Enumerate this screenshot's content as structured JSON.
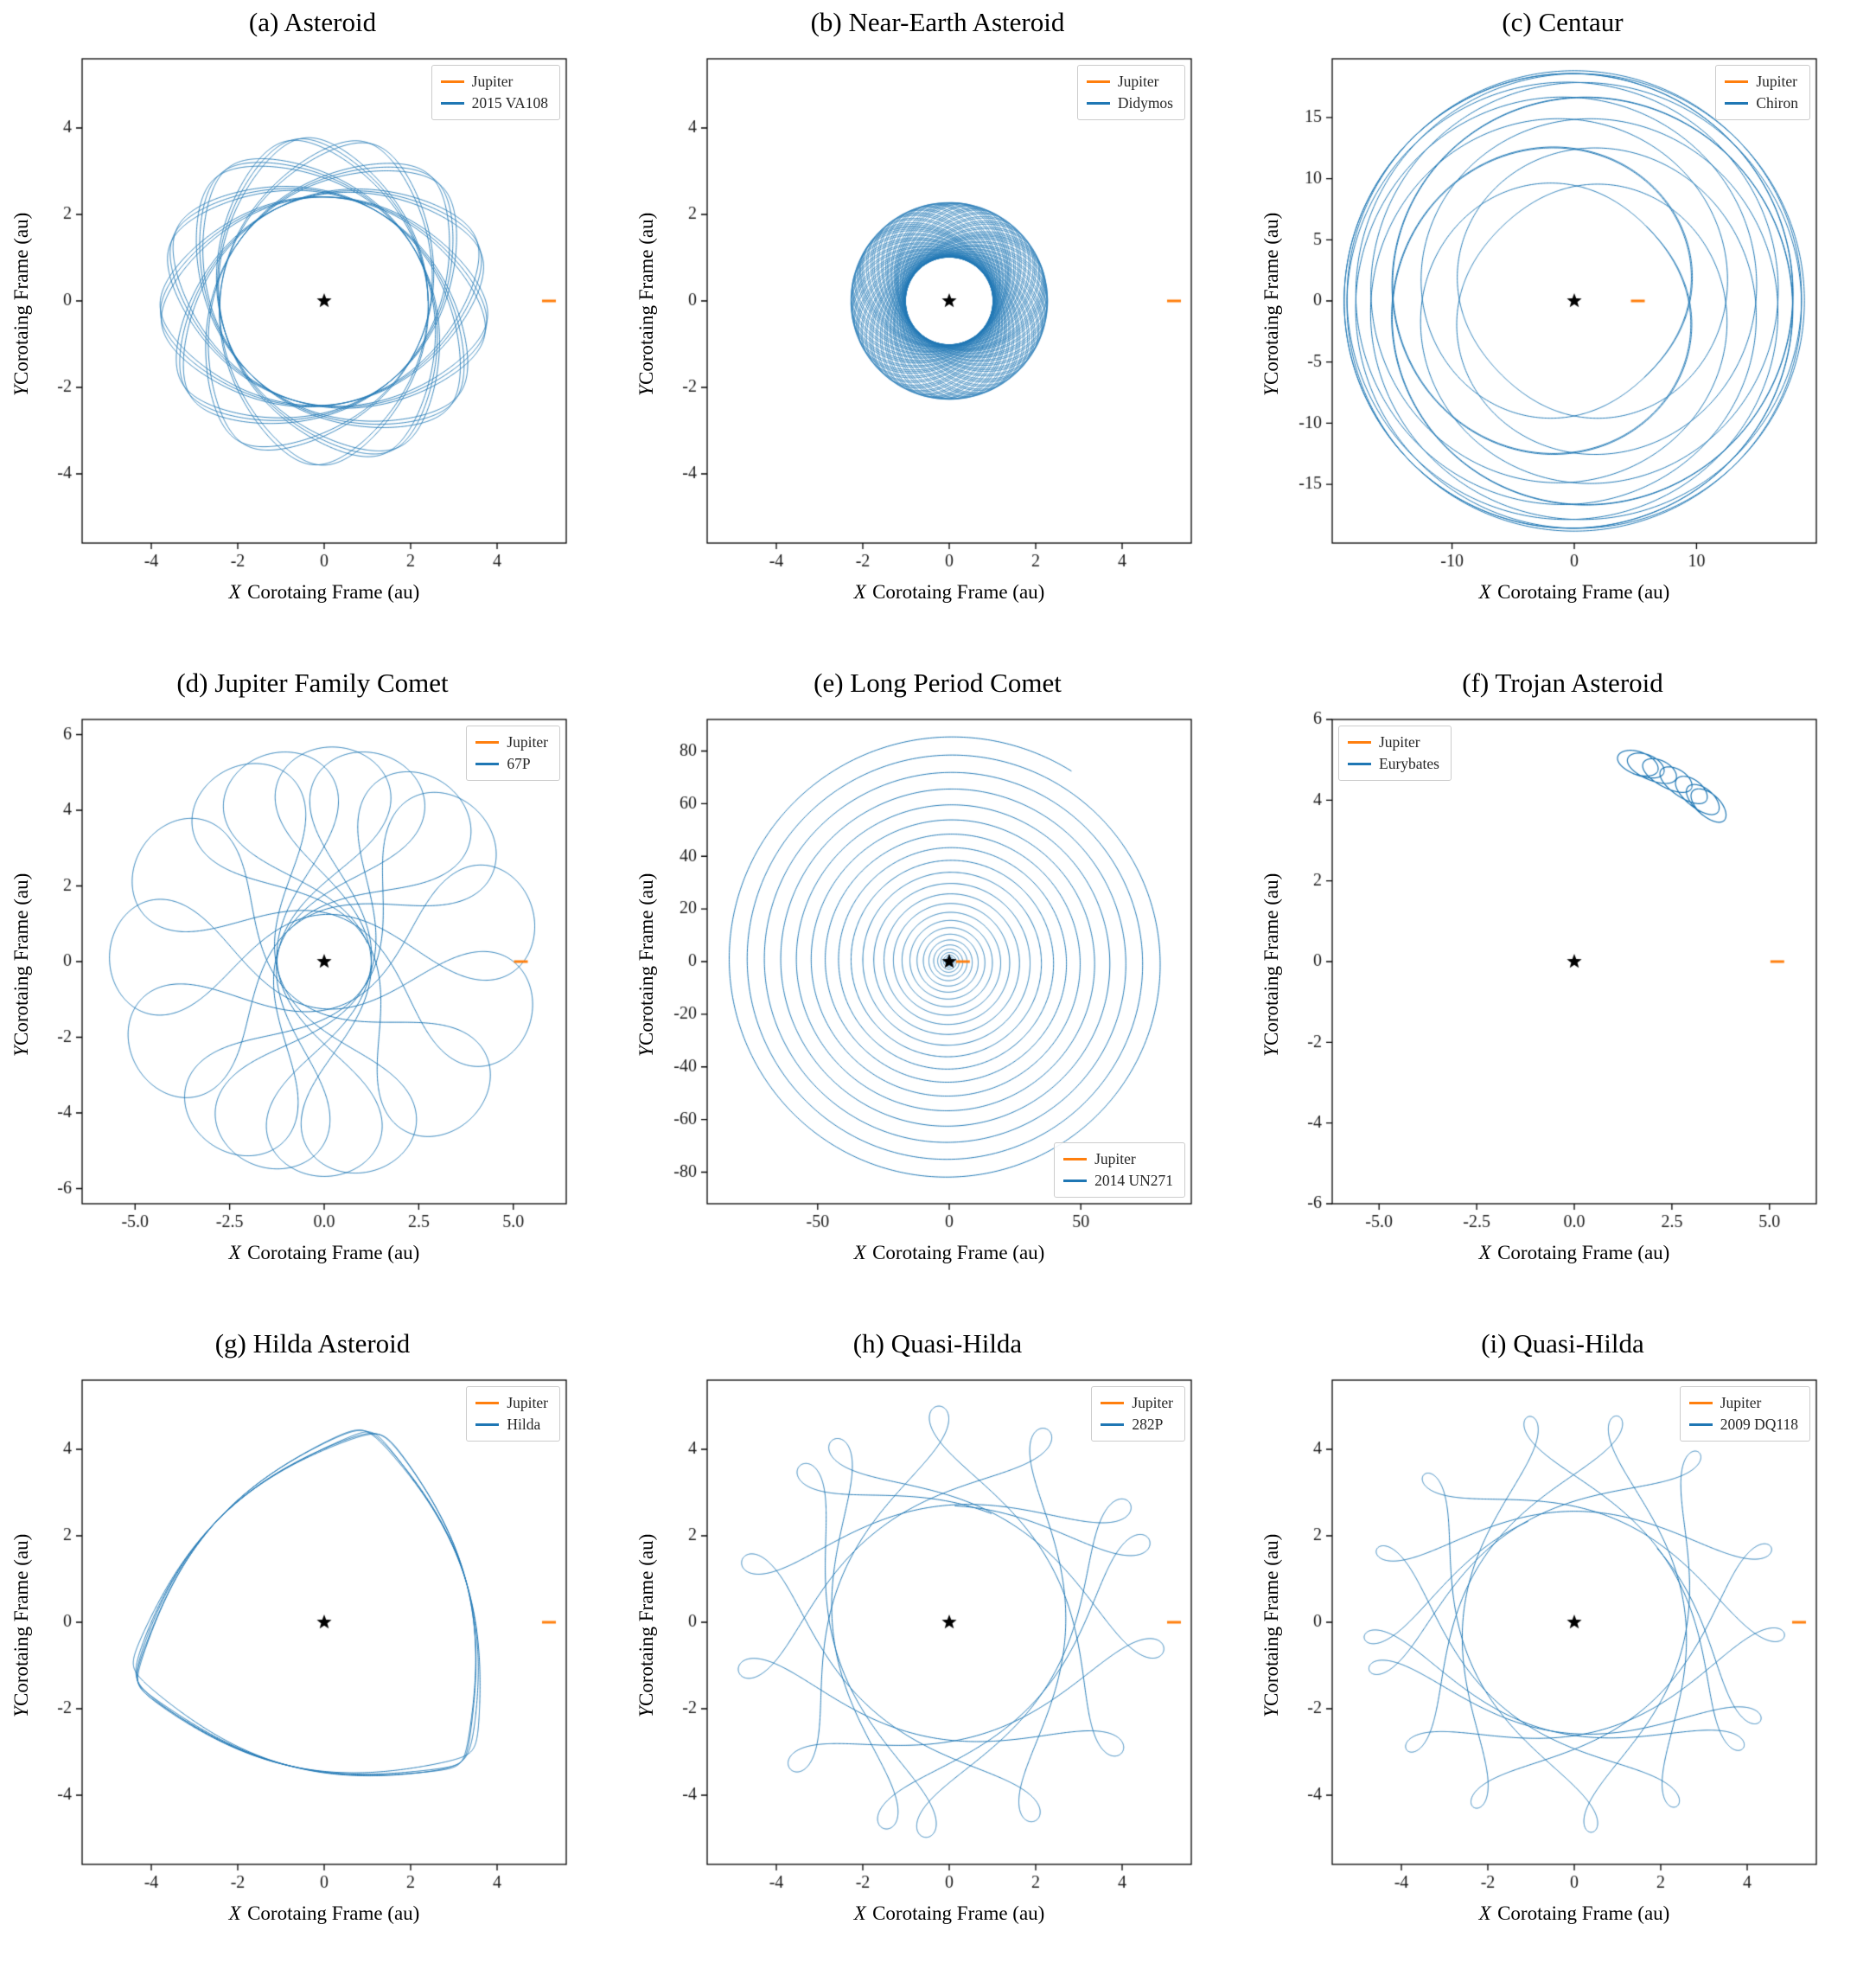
{
  "figure": {
    "rows": 3,
    "columns": 3,
    "background": "#ffffff"
  },
  "palette": {
    "object_line": "#1f77b4",
    "jupiter": "#ff7f0e",
    "star": "#000000",
    "spine": "#000000",
    "tick_text": "#1a1a1a"
  },
  "chart_data": [
    {
      "id": "a",
      "type": "line",
      "title": "(a) Asteroid",
      "xlabel_var": "X",
      "xlabel_rest": "Corotaing Frame (au)",
      "ylabel_var": "Y",
      "ylabel_rest": "Corotaing Frame (au)",
      "xlim": [
        -5.6,
        5.6
      ],
      "ylim": [
        -5.6,
        5.6
      ],
      "xticks": {
        "values": [
          -4,
          -2,
          0,
          2,
          4
        ],
        "labels": [
          "-4",
          "-2",
          "0",
          "2",
          "4"
        ]
      },
      "yticks": {
        "values": [
          -4,
          -2,
          0,
          2,
          4
        ],
        "labels": [
          "-4",
          "-2",
          "0",
          "2",
          "4"
        ]
      },
      "legend": {
        "pos": "top-right",
        "entries": [
          {
            "label": "Jupiter",
            "color": "#ff7f0e"
          },
          {
            "label": "2015 VA108",
            "color": "#1f77b4"
          }
        ]
      },
      "markers": {
        "sun": [
          0,
          0
        ],
        "jupiter": [
          5.2,
          0
        ]
      },
      "orbit": {
        "gen": "kepler",
        "a": 3.1,
        "e": 0.225,
        "k": 2.17,
        "orbits": 36,
        "steps": 300,
        "varpi": 0,
        "color": "#1f77b4",
        "lw": 0.9
      }
    },
    {
      "id": "b",
      "type": "line",
      "title": "(b) Near-Earth Asteroid",
      "xlabel_var": "X",
      "xlabel_rest": "Corotaing Frame (au)",
      "ylabel_var": "Y",
      "ylabel_rest": "Corotaing Frame (au)",
      "xlim": [
        -5.6,
        5.6
      ],
      "ylim": [
        -5.6,
        5.6
      ],
      "xticks": {
        "values": [
          -4,
          -2,
          0,
          2,
          4
        ],
        "labels": [
          "-4",
          "-2",
          "0",
          "2",
          "4"
        ]
      },
      "yticks": {
        "values": [
          -4,
          -2,
          0,
          2,
          4
        ],
        "labels": [
          "-4",
          "-2",
          "0",
          "2",
          "4"
        ]
      },
      "legend": {
        "pos": "top-right",
        "entries": [
          {
            "label": "Jupiter",
            "color": "#ff7f0e"
          },
          {
            "label": "Didymos",
            "color": "#1f77b4"
          }
        ]
      },
      "markers": {
        "sun": [
          0,
          0
        ],
        "jupiter": [
          5.2,
          0
        ]
      },
      "orbit": {
        "gen": "kepler",
        "a": 1.644,
        "e": 0.384,
        "k": 5.63,
        "orbits": 110,
        "steps": 220,
        "varpi": 0,
        "color": "#1f77b4",
        "lw": 0.7
      }
    },
    {
      "id": "c",
      "type": "line",
      "title": "(c) Centaur",
      "xlabel_var": "X",
      "xlabel_rest": "Corotaing Frame (au)",
      "ylabel_var": "Y",
      "ylabel_rest": "Corotaing Frame (au)",
      "xlim": [
        -19.8,
        19.8
      ],
      "ylim": [
        -19.8,
        19.8
      ],
      "xticks": {
        "values": [
          -10,
          0,
          10
        ],
        "labels": [
          "-10",
          "0",
          "10"
        ]
      },
      "yticks": {
        "values": [
          -15,
          -10,
          -5,
          0,
          5,
          10,
          15
        ],
        "labels": [
          "-15",
          "-10",
          "-5",
          "0",
          "5",
          "10",
          "15"
        ]
      },
      "legend": {
        "pos": "top-right",
        "entries": [
          {
            "label": "Jupiter",
            "color": "#ff7f0e"
          },
          {
            "label": "Chiron",
            "color": "#1f77b4"
          }
        ]
      },
      "markers": {
        "sun": [
          0,
          0
        ],
        "jupiter": [
          5.2,
          0
        ]
      },
      "orbit": {
        "gen": "kepler",
        "a": 13.65,
        "e": 0.379,
        "k": 0.2352,
        "orbits": 5,
        "steps": 1600,
        "varpi": 0.8,
        "color": "#1f77b4",
        "lw": 1.0
      }
    },
    {
      "id": "d",
      "type": "line",
      "title": "(d) Jupiter Family Comet",
      "xlabel_var": "X",
      "xlabel_rest": "Corotaing Frame (au)",
      "ylabel_var": "Y",
      "ylabel_rest": "Corotaing Frame (au)",
      "xlim": [
        -6.4,
        6.4
      ],
      "ylim": [
        -6.4,
        6.4
      ],
      "xticks": {
        "values": [
          -5,
          -2.5,
          0,
          2.5,
          5
        ],
        "labels": [
          "-5.0",
          "-2.5",
          "0.0",
          "2.5",
          "5.0"
        ]
      },
      "yticks": {
        "values": [
          -6,
          -4,
          -2,
          0,
          2,
          4,
          6
        ],
        "labels": [
          "-6",
          "-4",
          "-2",
          "0",
          "2",
          "4",
          "6"
        ]
      },
      "legend": {
        "pos": "top-right",
        "entries": [
          {
            "label": "Jupiter",
            "color": "#ff7f0e"
          },
          {
            "label": "67P",
            "color": "#1f77b4"
          }
        ]
      },
      "markers": {
        "sun": [
          0,
          0
        ],
        "jupiter": [
          5.2,
          0
        ]
      },
      "orbit": {
        "gen": "kepler",
        "a": 3.46,
        "e": 0.641,
        "k": 1.8437,
        "orbits": 16,
        "steps": 500,
        "varpi": 0.4,
        "color": "#1f77b4",
        "lw": 1.0
      }
    },
    {
      "id": "e",
      "type": "line",
      "title": "(e) Long Period Comet",
      "xlabel_var": "X",
      "xlabel_rest": "Corotaing Frame (au)",
      "ylabel_var": "Y",
      "ylabel_rest": "Corotaing Frame (au)",
      "xlim": [
        -92,
        92
      ],
      "ylim": [
        -92,
        92
      ],
      "xticks": {
        "values": [
          -50,
          0,
          50
        ],
        "labels": [
          "-50",
          "0",
          "50"
        ]
      },
      "yticks": {
        "values": [
          -80,
          -60,
          -40,
          -20,
          0,
          20,
          40,
          60,
          80
        ],
        "labels": [
          "-80",
          "-60",
          "-40",
          "-20",
          "0",
          "20",
          "40",
          "60",
          "80"
        ]
      },
      "legend": {
        "pos": "bottom-right",
        "entries": [
          {
            "label": "Jupiter",
            "color": "#ff7f0e"
          },
          {
            "label": "2014 UN271",
            "color": "#1f77b4"
          }
        ]
      },
      "markers": {
        "sun": [
          0,
          0
        ],
        "jupiter": [
          5.2,
          0
        ]
      },
      "orbit": {
        "gen": "spiral",
        "q": 1.2,
        "rmax": 86,
        "p": 2,
        "turns": 24,
        "phi0": 1.0,
        "points": 14000,
        "color": "#1f77b4",
        "lw": 1.0
      }
    },
    {
      "id": "f",
      "type": "line",
      "title": "(f) Trojan Asteroid",
      "xlabel_var": "X",
      "xlabel_rest": "Corotaing Frame (au)",
      "ylabel_var": "Y",
      "ylabel_rest": "Corotaing Frame (au)",
      "xlim": [
        -6.2,
        6.2
      ],
      "ylim": [
        -6,
        6
      ],
      "xticks": {
        "values": [
          -5,
          -2.5,
          0,
          2.5,
          5
        ],
        "labels": [
          "-5.0",
          "-2.5",
          "0.0",
          "2.5",
          "5.0"
        ]
      },
      "yticks": {
        "values": [
          -6,
          -4,
          -2,
          0,
          2,
          4,
          6
        ],
        "labels": [
          "-6",
          "-4",
          "-2",
          "0",
          "2",
          "4",
          "6"
        ]
      },
      "legend": {
        "pos": "top-left",
        "entries": [
          {
            "label": "Jupiter",
            "color": "#ff7f0e"
          },
          {
            "label": "Eurybates",
            "color": "#1f77b4"
          }
        ]
      },
      "markers": {
        "sun": [
          0,
          0
        ],
        "jupiter": [
          5.2,
          0
        ]
      },
      "orbit": {
        "gen": "kepler",
        "a": 5.18,
        "e": 0.055,
        "k": 1.0,
        "orbits": 7,
        "steps": 500,
        "varpi": 1.0472,
        "lib": 0.21,
        "libf": 0.0714,
        "libp": -1.5708,
        "color": "#1f77b4",
        "lw": 1.2
      }
    },
    {
      "id": "g",
      "type": "line",
      "title": "(g) Hilda Asteroid",
      "xlabel_var": "X",
      "xlabel_rest": "Corotaing Frame (au)",
      "ylabel_var": "Y",
      "ylabel_rest": "Corotaing Frame (au)",
      "xlim": [
        -5.6,
        5.6
      ],
      "ylim": [
        -5.6,
        5.6
      ],
      "xticks": {
        "values": [
          -4,
          -2,
          0,
          2,
          4
        ],
        "labels": [
          "-4",
          "-2",
          "0",
          "2",
          "4"
        ]
      },
      "yticks": {
        "values": [
          -4,
          -2,
          0,
          2,
          4
        ],
        "labels": [
          "-4",
          "-2",
          "0",
          "2",
          "4"
        ]
      },
      "legend": {
        "pos": "top-right",
        "entries": [
          {
            "label": "Jupiter",
            "color": "#ff7f0e"
          },
          {
            "label": "Hilda",
            "color": "#1f77b4"
          }
        ]
      },
      "markers": {
        "sun": [
          0,
          0
        ],
        "jupiter": [
          5.2,
          0
        ]
      },
      "orbit": {
        "gen": "kepler",
        "a": 3.97,
        "e": 0.14,
        "k": 1.5,
        "orbits": 14,
        "steps": 350,
        "varpi": 0.28,
        "lib": 0.05,
        "libf": 0.23,
        "libp": 0,
        "color": "#1f77b4",
        "lw": 1.0
      }
    },
    {
      "id": "h",
      "type": "line",
      "title": "(h) Quasi-Hilda",
      "xlabel_var": "X",
      "xlabel_rest": "Corotaing Frame (au)",
      "ylabel_var": "Y",
      "ylabel_rest": "Corotaing Frame (au)",
      "xlim": [
        -5.6,
        5.6
      ],
      "ylim": [
        -5.6,
        5.6
      ],
      "xticks": {
        "values": [
          -4,
          -2,
          0,
          2,
          4
        ],
        "labels": [
          "-4",
          "-2",
          "0",
          "2",
          "4"
        ]
      },
      "yticks": {
        "values": [
          -4,
          -2,
          0,
          2,
          4
        ],
        "labels": [
          "-4",
          "-2",
          "0",
          "2",
          "4"
        ]
      },
      "legend": {
        "pos": "top-right",
        "entries": [
          {
            "label": "Jupiter",
            "color": "#ff7f0e"
          },
          {
            "label": "282P",
            "color": "#1f77b4"
          }
        ]
      },
      "markers": {
        "sun": [
          0,
          0
        ],
        "jupiter": [
          5.2,
          0
        ]
      },
      "orbit": {
        "gen": "kepler",
        "a": 3.85,
        "e": 0.3,
        "k": 1.5645,
        "orbits": 14,
        "steps": 450,
        "varpi": 1.2,
        "color": "#1f77b4",
        "lw": 1.0
      }
    },
    {
      "id": "i",
      "type": "line",
      "title": "(i) Quasi-Hilda",
      "xlabel_var": "X",
      "xlabel_rest": "Corotaing Frame (au)",
      "ylabel_var": "Y",
      "ylabel_rest": "Corotaing Frame (au)",
      "xlim": [
        -5.6,
        5.6
      ],
      "ylim": [
        -5.6,
        5.6
      ],
      "xticks": {
        "values": [
          -4,
          -2,
          0,
          2,
          4
        ],
        "labels": [
          "-4",
          "-2",
          "0",
          "2",
          "4"
        ]
      },
      "yticks": {
        "values": [
          -4,
          -2,
          0,
          2,
          4
        ],
        "labels": [
          "-4",
          "-2",
          "0",
          "2",
          "4"
        ]
      },
      "legend": {
        "pos": "top-right",
        "entries": [
          {
            "label": "Jupiter",
            "color": "#ff7f0e"
          },
          {
            "label": "2009 DQ118",
            "color": "#1f77b4"
          }
        ]
      },
      "markers": {
        "sun": [
          0,
          0
        ],
        "jupiter": [
          5.2,
          0
        ]
      },
      "orbit": {
        "gen": "kepler",
        "a": 3.72,
        "e": 0.31,
        "k": 1.63,
        "orbits": 15,
        "steps": 450,
        "varpi": 2.0,
        "color": "#1f77b4",
        "lw": 1.0
      }
    }
  ]
}
